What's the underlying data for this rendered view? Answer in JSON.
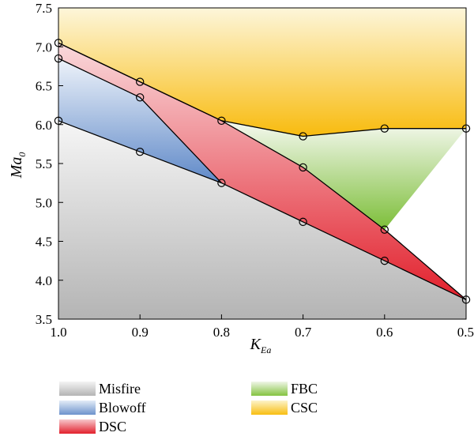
{
  "chart_data": {
    "type": "area",
    "xlabel_main": "K",
    "xlabel_sub": "Ea",
    "ylabel_main": "Ma",
    "ylabel_sub": "0",
    "xlim": [
      1.0,
      0.5
    ],
    "ylim": [
      3.5,
      7.5
    ],
    "x_ticks": [
      "1.0",
      "0.9",
      "0.8",
      "0.7",
      "0.6",
      "0.5"
    ],
    "x_tick_values": [
      1.0,
      0.9,
      0.8,
      0.7,
      0.6,
      0.5
    ],
    "y_ticks": [
      "3.5",
      "4.0",
      "4.5",
      "5.0",
      "5.5",
      "6.0",
      "6.5",
      "7.0",
      "7.5"
    ],
    "y_tick_values": [
      3.5,
      4.0,
      4.5,
      5.0,
      5.5,
      6.0,
      6.5,
      7.0,
      7.5
    ],
    "boundaries": {
      "misfire_upper": [
        [
          1.0,
          6.05
        ],
        [
          0.9,
          5.65
        ],
        [
          0.8,
          5.25
        ],
        [
          0.7,
          4.75
        ],
        [
          0.6,
          4.25
        ],
        [
          0.5,
          3.75
        ]
      ],
      "blowoff_upper": [
        [
          1.0,
          6.85
        ],
        [
          0.9,
          6.35
        ],
        [
          0.8,
          5.25
        ]
      ],
      "dsc_upper": [
        [
          1.0,
          7.05
        ],
        [
          0.9,
          6.55
        ],
        [
          0.8,
          6.05
        ],
        [
          0.7,
          5.45
        ],
        [
          0.6,
          4.65
        ],
        [
          0.5,
          3.75
        ]
      ],
      "csc_lower": [
        [
          1.0,
          7.05
        ],
        [
          0.9,
          6.55
        ],
        [
          0.8,
          6.05
        ],
        [
          0.7,
          5.85
        ],
        [
          0.6,
          5.95
        ],
        [
          0.5,
          5.95
        ]
      ]
    },
    "markers": [
      [
        1.0,
        7.05
      ],
      [
        1.0,
        6.85
      ],
      [
        1.0,
        6.05
      ],
      [
        0.9,
        6.55
      ],
      [
        0.9,
        6.35
      ],
      [
        0.9,
        5.65
      ],
      [
        0.8,
        6.05
      ],
      [
        0.8,
        5.25
      ],
      [
        0.7,
        5.85
      ],
      [
        0.7,
        5.45
      ],
      [
        0.7,
        4.75
      ],
      [
        0.6,
        5.95
      ],
      [
        0.6,
        4.65
      ],
      [
        0.6,
        4.25
      ],
      [
        0.5,
        5.95
      ],
      [
        0.5,
        3.75
      ]
    ],
    "legend": [
      {
        "name": "Misfire",
        "color_light": "#f4f4f4",
        "color_dark": "#b4b4b4"
      },
      {
        "name": "Blowoff",
        "color_light": "#e3ecf7",
        "color_dark": "#6d93cc"
      },
      {
        "name": "DSC",
        "color_light": "#f7c8cc",
        "color_dark": "#e2202c"
      },
      {
        "name": "FBC",
        "color_light": "#f0f6e8",
        "color_dark": "#84c341"
      },
      {
        "name": "CSC",
        "color_light": "#fdf3c9",
        "color_dark": "#f8be12"
      }
    ],
    "legend_placement": "bottom"
  }
}
